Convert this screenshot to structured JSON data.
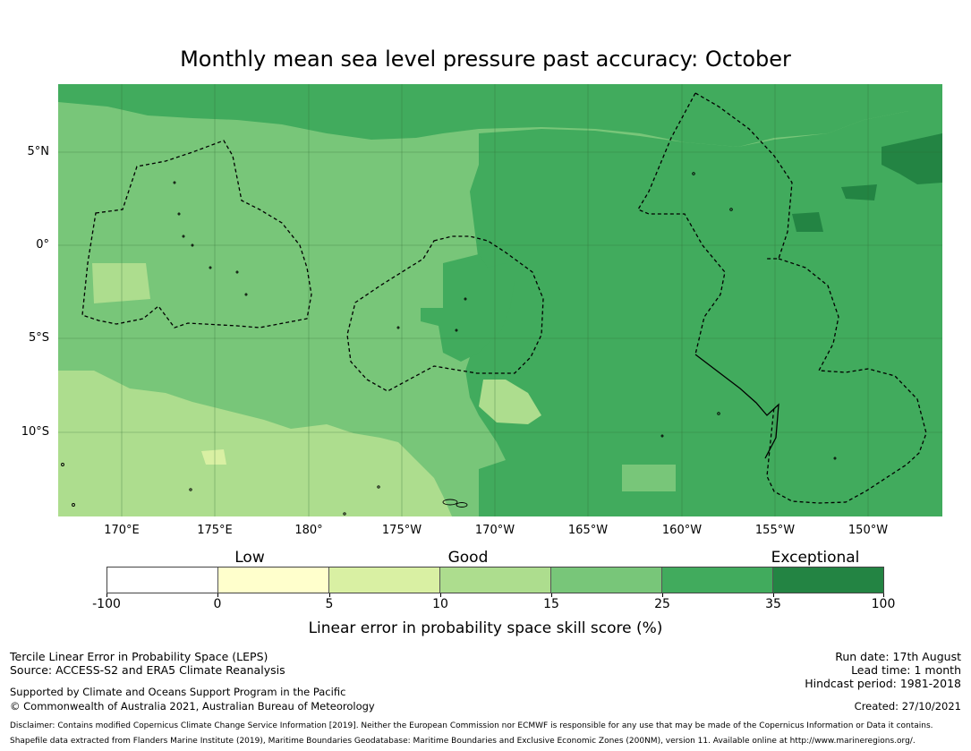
{
  "title": "Monthly mean sea level pressure past accuracy: October",
  "map": {
    "lat_labels": [
      "5°N",
      "0°",
      "5°S",
      "10°S"
    ],
    "lon_labels": [
      "170°E",
      "175°E",
      "180°",
      "175°W",
      "170°W",
      "165°W",
      "160°W",
      "155°W",
      "150°W"
    ],
    "colors": {
      "c_0_5": "#ffffcc",
      "c_5_10": "#d9f0a3",
      "c_10_15": "#addd8e",
      "c_15_25": "#78c679",
      "c_25_35": "#41ab5d",
      "c_35_100": "#238443"
    }
  },
  "colorbar": {
    "categories": [
      "Low",
      "Good",
      "Exceptional"
    ],
    "ticks": [
      "-100",
      "0",
      "5",
      "10",
      "15",
      "25",
      "35",
      "100"
    ],
    "colors": [
      "#ffffff",
      "#ffffcc",
      "#d9f0a3",
      "#addd8e",
      "#78c679",
      "#41ab5d",
      "#238443"
    ],
    "label": "Linear error in probability space skill score (%)"
  },
  "footer": {
    "line1": "Tercile Linear Error in Probability Space (LEPS)",
    "line2": "Source: ACCESS-S2 and ERA5 Climate Reanalysis",
    "line3": "Supported by Climate and Oceans Support Program in the Pacific",
    "line4": "© Commonwealth of Australia 2021, Australian Bureau of Meteorology",
    "run_date": "Run date: 17th August",
    "lead_time": "Lead time: 1 month",
    "hindcast": "Hindcast period: 1981-2018",
    "created": "Created: 27/10/2021",
    "disclaimer": "Disclaimer: Contains modified Copernicus Climate Change Service Information [2019]. Neither the European Commission nor ECMWF is responsible for any use that may be made of the Copernicus Information or Data it contains.",
    "shapefile": "Shapefile data extracted from Flanders Marine Institute (2019), Maritime Boundaries Geodatabase: Maritime Boundaries and Exclusive Economic Zones (200NM), version 11. Available online at http://www.marineregions.org/."
  }
}
